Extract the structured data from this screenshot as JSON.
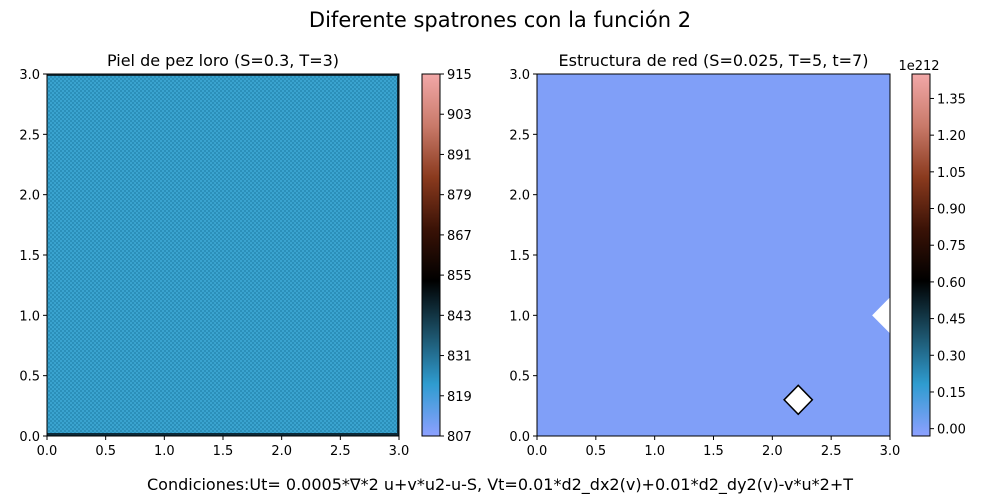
{
  "figure": {
    "suptitle": "Diferente spatrones con la función 2",
    "footer": "Condiciones:Ut= 0.0005*∇*2 u+v*u2-u-S, Vt=0.01*d2_dx2(v)+0.01*d2_dy2(v)-v*u*2+T"
  },
  "colors": {
    "cmap": [
      "#8da0ff",
      "#2f9cd0",
      "#1b4f66",
      "#000000",
      "#3a1206",
      "#8a3a1e",
      "#c97a6a",
      "#f2a8a8"
    ]
  },
  "chart_data": [
    {
      "type": "heatmap",
      "title": "Piel de pez loro (S=0.3, T=3)",
      "xlabel": "",
      "ylabel": "",
      "xlim": [
        0,
        3
      ],
      "ylim": [
        0,
        3
      ],
      "x_ticks": [
        "0.0",
        "0.5",
        "1.0",
        "1.5",
        "2.0",
        "2.5",
        "3.0"
      ],
      "y_ticks": [
        "0.0",
        "0.5",
        "1.0",
        "1.5",
        "2.0",
        "2.5",
        "3.0"
      ],
      "field": "fine checkerboard texture, values ~835",
      "fill_value": 835,
      "colorbar": {
        "min": 807,
        "max": 915,
        "ticks": [
          "807",
          "819",
          "831",
          "843",
          "855",
          "867",
          "879",
          "891",
          "903",
          "915"
        ],
        "offset": ""
      }
    },
    {
      "type": "heatmap",
      "title": "Estructura de red (S=0.025, T=5, t=7)",
      "xlabel": "",
      "ylabel": "",
      "xlim": [
        0,
        3
      ],
      "ylim": [
        0,
        3
      ],
      "x_ticks": [
        "0.0",
        "0.5",
        "1.0",
        "1.5",
        "2.0",
        "2.5",
        "3.0"
      ],
      "y_ticks": [
        "0.0",
        "0.5",
        "1.0",
        "1.5",
        "2.0",
        "2.5",
        "3.0"
      ],
      "field": "uniform near zero with two blank (white) regions",
      "fill_value": 0.0,
      "blank_regions": [
        {
          "shape": "diamond",
          "center": [
            2.22,
            0.3
          ],
          "half_width": 0.12
        },
        {
          "shape": "wedge",
          "tip": [
            2.95,
            1.0
          ],
          "half_height": 0.15
        }
      ],
      "colorbar": {
        "min": -0.03,
        "max": 1.45,
        "ticks": [
          "0.00",
          "0.15",
          "0.30",
          "0.45",
          "0.60",
          "0.75",
          "0.90",
          "1.05",
          "1.20",
          "1.35"
        ],
        "offset": "1e212"
      }
    }
  ]
}
